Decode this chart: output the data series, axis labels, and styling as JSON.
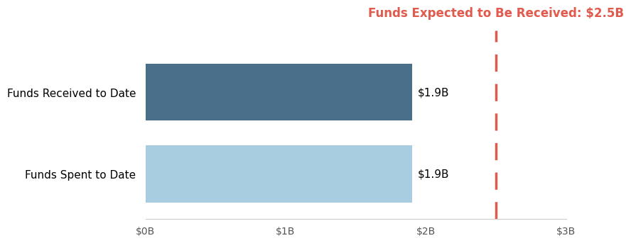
{
  "categories": [
    "Funds Received to Date",
    "Funds Spent to Date"
  ],
  "values": [
    1.9,
    1.9
  ],
  "bar_colors": [
    "#4a6f8a",
    "#a8cce0"
  ],
  "value_labels": [
    "$1.9B",
    "$1.9B"
  ],
  "dashed_line_x": 2.5,
  "dashed_line_color": "#e05a4e",
  "dashed_line_label": "Funds Expected to Be Received: $2.5B",
  "xlim": [
    0,
    3
  ],
  "xticks": [
    0,
    1,
    2,
    3
  ],
  "xtick_labels": [
    "$0B",
    "$1B",
    "$2B",
    "$3B"
  ],
  "background_color": "#ffffff",
  "bar_label_fontsize": 11,
  "category_label_fontsize": 11,
  "annotation_fontsize": 12,
  "annotation_color": "#e05a4e",
  "bar_height": 0.7
}
